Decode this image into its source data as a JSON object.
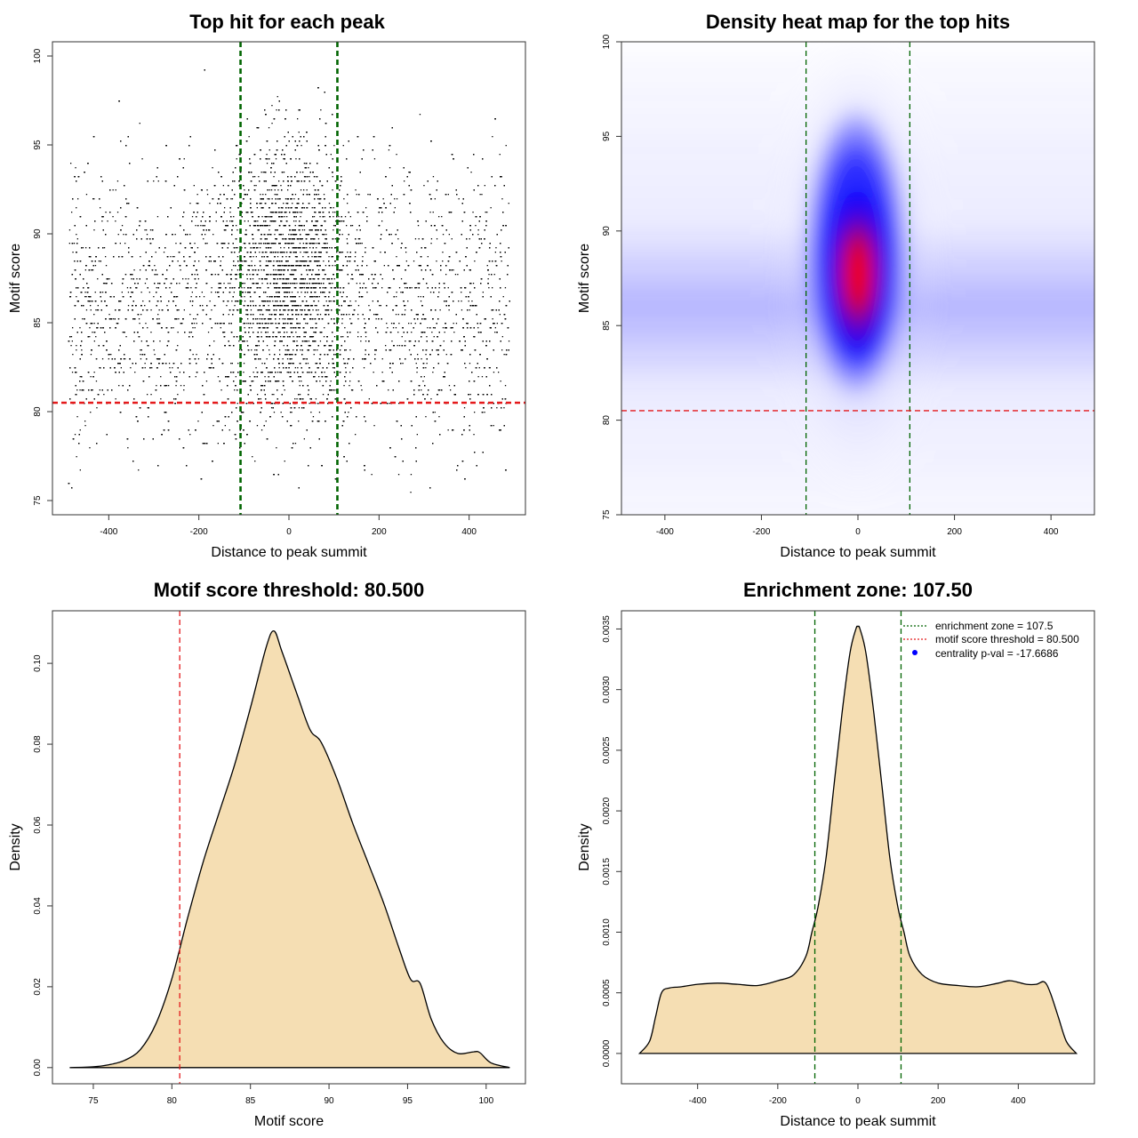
{
  "figure": {
    "panels": [
      {
        "title": "Top hit for each peak",
        "xlabel": "Distance to peak summit",
        "ylabel": "Motif score"
      },
      {
        "title": "Density heat map for the top hits",
        "xlabel": "Distance to peak summit",
        "ylabel": "Motif score"
      },
      {
        "title": "Motif score threshold: 80.500",
        "xlabel": "Motif score",
        "ylabel": "Density"
      },
      {
        "title": "Enrichment zone: 107.50",
        "xlabel": "Distance to peak summit",
        "ylabel": "Density"
      }
    ],
    "legend": [
      {
        "label": "enrichment zone = 107.5",
        "color": "#006400",
        "style": "dotted-line"
      },
      {
        "label": "motif score threshold = 80.500",
        "color": "#e41a1c",
        "style": "dotted-line"
      },
      {
        "label": "centrality p-val = -17.6686",
        "color": "#0000ff",
        "style": "point"
      }
    ]
  },
  "chart_data": [
    {
      "type": "scatter",
      "title": "Top hit for each peak",
      "xlabel": "Distance to peak summit",
      "ylabel": "Motif score",
      "xlim": [
        -525,
        525
      ],
      "ylim": [
        74.2,
        100.8
      ],
      "xticks": [
        "-400",
        "-200",
        "0",
        "200",
        "400"
      ],
      "yticks": [
        "75",
        "80",
        "85",
        "90",
        "95",
        "100"
      ],
      "point_color": "#000000",
      "distribution": {
        "n_points_approx": 15000,
        "central_fraction": 0.4,
        "central_center": [
          0,
          88
        ],
        "background_center_y": 86,
        "background_range_x": [
          -490,
          490
        ],
        "score_range": [
          75,
          100
        ]
      },
      "vlines": {
        "values": [
          -107.5,
          107.5
        ],
        "color": "#006400",
        "style": "dashed"
      },
      "hline": {
        "value": 80.5,
        "color": "#e41a1c",
        "style": "dashed"
      }
    },
    {
      "type": "heatmap",
      "title": "Density heat map for the top hits",
      "xlabel": "Distance to peak summit",
      "ylabel": "Motif score",
      "xlim": [
        -490,
        490
      ],
      "ylim": [
        75,
        100
      ],
      "xticks": [
        "-400",
        "-200",
        "0",
        "200",
        "400"
      ],
      "yticks": [
        "75",
        "80",
        "85",
        "90",
        "95",
        "100"
      ],
      "color_scale": [
        "#ffffff",
        "#0000ff",
        "#ff0000"
      ],
      "hotspot": {
        "x": 0,
        "y": 87
      },
      "background_band": {
        "y": 86
      },
      "vlines": {
        "values": [
          -107.5,
          107.5
        ],
        "color": "#006400",
        "style": "dashed"
      },
      "hline": {
        "value": 80.5,
        "color": "#e41a1c",
        "style": "dashed"
      }
    },
    {
      "type": "area",
      "title": "Motif score threshold: 80.500",
      "xlabel": "Motif score",
      "ylabel": "Density",
      "xlim": [
        72.4,
        102.5
      ],
      "ylim": [
        -0.004,
        0.113
      ],
      "xticks": [
        "75",
        "80",
        "85",
        "90",
        "95",
        "100"
      ],
      "yticks": [
        "0.00",
        "0.02",
        "0.04",
        "0.06",
        "0.08",
        "0.10"
      ],
      "fill_color": "#f5deb3",
      "x": [
        73.5,
        75,
        76,
        77,
        78,
        79,
        80,
        81,
        82,
        83,
        84,
        85,
        86,
        86.5,
        87,
        88,
        88.8,
        89.5,
        90.5,
        91.5,
        92.5,
        93.5,
        94.5,
        95.2,
        95.8,
        96.5,
        97.3,
        98.2,
        99.2,
        99.6,
        100.3,
        101.5
      ],
      "y": [
        0.0,
        0.0002,
        0.0007,
        0.0018,
        0.0045,
        0.011,
        0.022,
        0.037,
        0.051,
        0.063,
        0.075,
        0.089,
        0.104,
        0.108,
        0.103,
        0.092,
        0.0835,
        0.0805,
        0.0715,
        0.0605,
        0.0505,
        0.0405,
        0.029,
        0.0218,
        0.0208,
        0.012,
        0.0062,
        0.0035,
        0.0039,
        0.0037,
        0.0012,
        0.0
      ],
      "vline": {
        "value": 80.5,
        "color": "#e41a1c",
        "style": "dashed"
      }
    },
    {
      "type": "area",
      "title": "Enrichment zone: 107.50",
      "xlabel": "Distance to peak summit",
      "ylabel": "Density",
      "xlim": [
        -590,
        590
      ],
      "ylim": [
        -0.00025,
        0.00365
      ],
      "xticks": [
        "-400",
        "-200",
        "0",
        "200",
        "400"
      ],
      "yticks": [
        "0.0000",
        "0.0005",
        "0.0010",
        "0.0015",
        "0.0020",
        "0.0025",
        "0.0030",
        "0.0035"
      ],
      "fill_color": "#f5deb3",
      "x": [
        -545,
        -520,
        -505,
        -490,
        -470,
        -440,
        -400,
        -350,
        -300,
        -250,
        -200,
        -160,
        -130,
        -115,
        -100,
        -80,
        -60,
        -40,
        -20,
        -5,
        0,
        5,
        20,
        40,
        60,
        80,
        100,
        115,
        130,
        160,
        200,
        250,
        300,
        350,
        380,
        420,
        445,
        465,
        480,
        500,
        520,
        545
      ],
      "y": [
        0.0,
        0.0001,
        0.0003,
        0.0005,
        0.00054,
        0.00055,
        0.00057,
        0.00058,
        0.00057,
        0.00056,
        0.0006,
        0.00065,
        0.0008,
        0.001,
        0.0012,
        0.0016,
        0.0022,
        0.0028,
        0.0033,
        0.0035,
        0.00352,
        0.0035,
        0.0033,
        0.0028,
        0.0022,
        0.0016,
        0.0012,
        0.001,
        0.0008,
        0.00065,
        0.00058,
        0.00056,
        0.00055,
        0.00058,
        0.0006,
        0.00057,
        0.00057,
        0.00059,
        0.0005,
        0.0003,
        0.0001,
        0.0
      ],
      "vlines": {
        "values": [
          -107.5,
          107.5
        ],
        "color": "#006400",
        "style": "dashed"
      }
    }
  ]
}
